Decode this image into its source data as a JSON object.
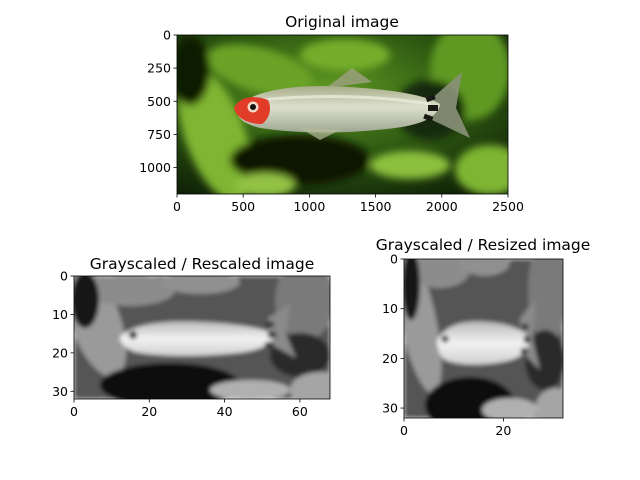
{
  "figure": {
    "background": "#ffffff",
    "axis_color": "#000000"
  },
  "chart_data": [
    {
      "type": "image",
      "title": "Original image",
      "content": "color photograph of a red-headed tetra fish swimming left against a blurred green aquatic plant background",
      "x_ticks": [
        0,
        500,
        1000,
        1500,
        2000,
        2500
      ],
      "y_ticks": [
        0,
        250,
        500,
        750,
        1000
      ],
      "xlim": [
        0,
        2500
      ],
      "ylim": [
        1200,
        0
      ],
      "grid": false,
      "colors": {
        "background_green": "#2e5a12",
        "highlight_green": "#8cc03c",
        "dark_green": "#071005",
        "fish_body": "#c8ccb4",
        "fish_head": "#e03c28"
      }
    },
    {
      "type": "image",
      "title": "Grayscaled / Rescaled image",
      "content": "low-resolution grayscale version of the fish photo, 69 x 33 pixels",
      "x_ticks": [
        0,
        20,
        40,
        60
      ],
      "y_ticks": [
        0,
        10,
        20,
        30
      ],
      "xlim": [
        0,
        68
      ],
      "ylim": [
        32,
        0
      ],
      "grid": false,
      "colormap": "gray"
    },
    {
      "type": "image",
      "title": "Grayscaled / Resized image",
      "content": "grayscale fish photo squeezed to a square 33 x 33 pixels",
      "x_ticks": [
        0,
        20
      ],
      "y_ticks": [
        0,
        10,
        20,
        30
      ],
      "xlim": [
        0,
        32
      ],
      "ylim": [
        32,
        0
      ],
      "grid": false,
      "colormap": "gray"
    }
  ]
}
